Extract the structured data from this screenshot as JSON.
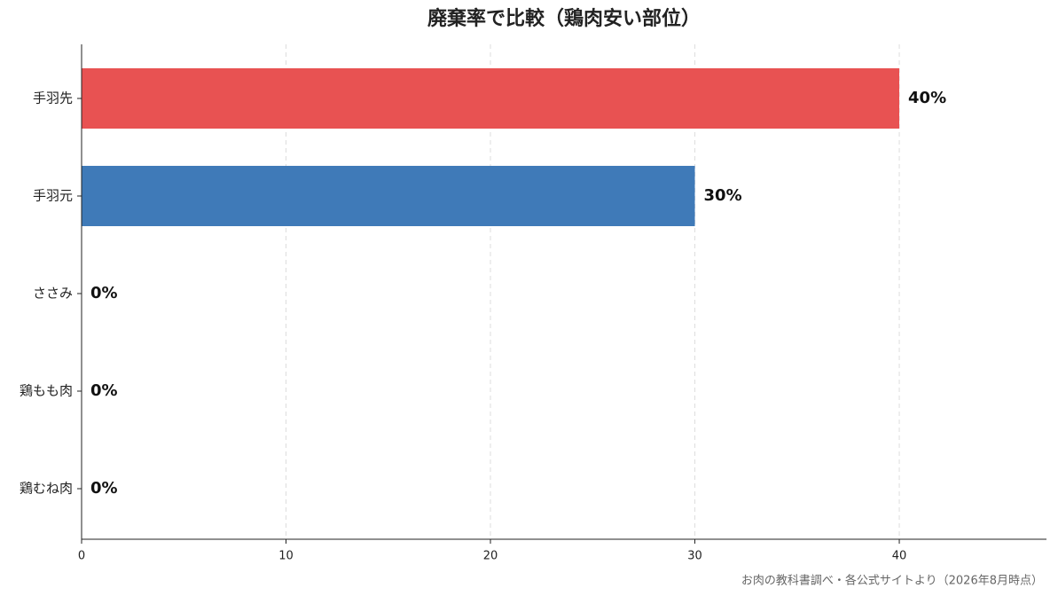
{
  "chart_data": {
    "type": "barh",
    "title": "廃棄率で比較（鶏肉安い部位）",
    "categories": [
      "手羽先",
      "手羽元",
      "ささみ",
      "鶏もも肉",
      "鶏むね肉"
    ],
    "values": [
      40,
      30,
      0,
      0,
      0
    ],
    "value_labels": [
      "40%",
      "30%",
      "0%",
      "0%",
      "0%"
    ],
    "colors": [
      "#e85252",
      "#3f7ab8",
      "#3f7ab8",
      "#3f7ab8",
      "#3f7ab8"
    ],
    "xlim": [
      0,
      47.2
    ],
    "xticks": [
      0,
      10,
      20,
      30,
      40
    ],
    "grid": true,
    "source": "お肉の教科書調べ・各公式サイトより（2026年8月時点）"
  }
}
